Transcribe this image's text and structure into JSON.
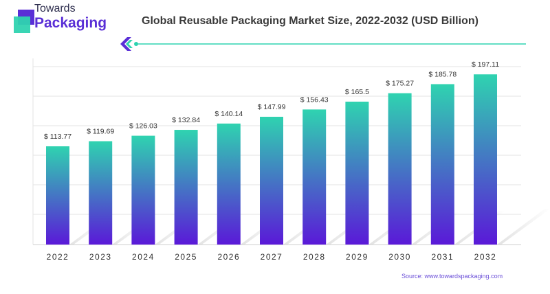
{
  "brand": {
    "line1": "Towards",
    "line2": "Packaging"
  },
  "source_text": "Source: www.towardspackaging.com",
  "colors": {
    "bar_top": "#2fd3b0",
    "bar_bottom": "#5a19d8",
    "grid": "#e3e3e3",
    "accent_line": "#2fd3b0",
    "brand_purple": "#5a2fd6",
    "brand_teal": "#2fd3b0"
  },
  "chart_data": {
    "type": "bar",
    "title": "Global Reusable Packaging Market Size, 2022-2032 (USD Billion)",
    "categories": [
      "2022",
      "2023",
      "2024",
      "2025",
      "2026",
      "2027",
      "2028",
      "2029",
      "2030",
      "2031",
      "2032"
    ],
    "values": [
      113.77,
      119.69,
      126.03,
      132.84,
      140.14,
      147.99,
      156.43,
      165.5,
      175.27,
      185.78,
      197.11
    ],
    "value_labels": [
      "$ 113.77",
      "$ 119.69",
      "$ 126.03",
      "$ 132.84",
      "$ 140.14",
      "$ 147.99",
      "$ 156.43",
      "$ 165.5",
      "$ 175.27",
      "$ 185.78",
      "$ 197.11"
    ],
    "xlabel": "",
    "ylabel": "",
    "ylim": [
      0,
      200
    ],
    "grid": true
  }
}
